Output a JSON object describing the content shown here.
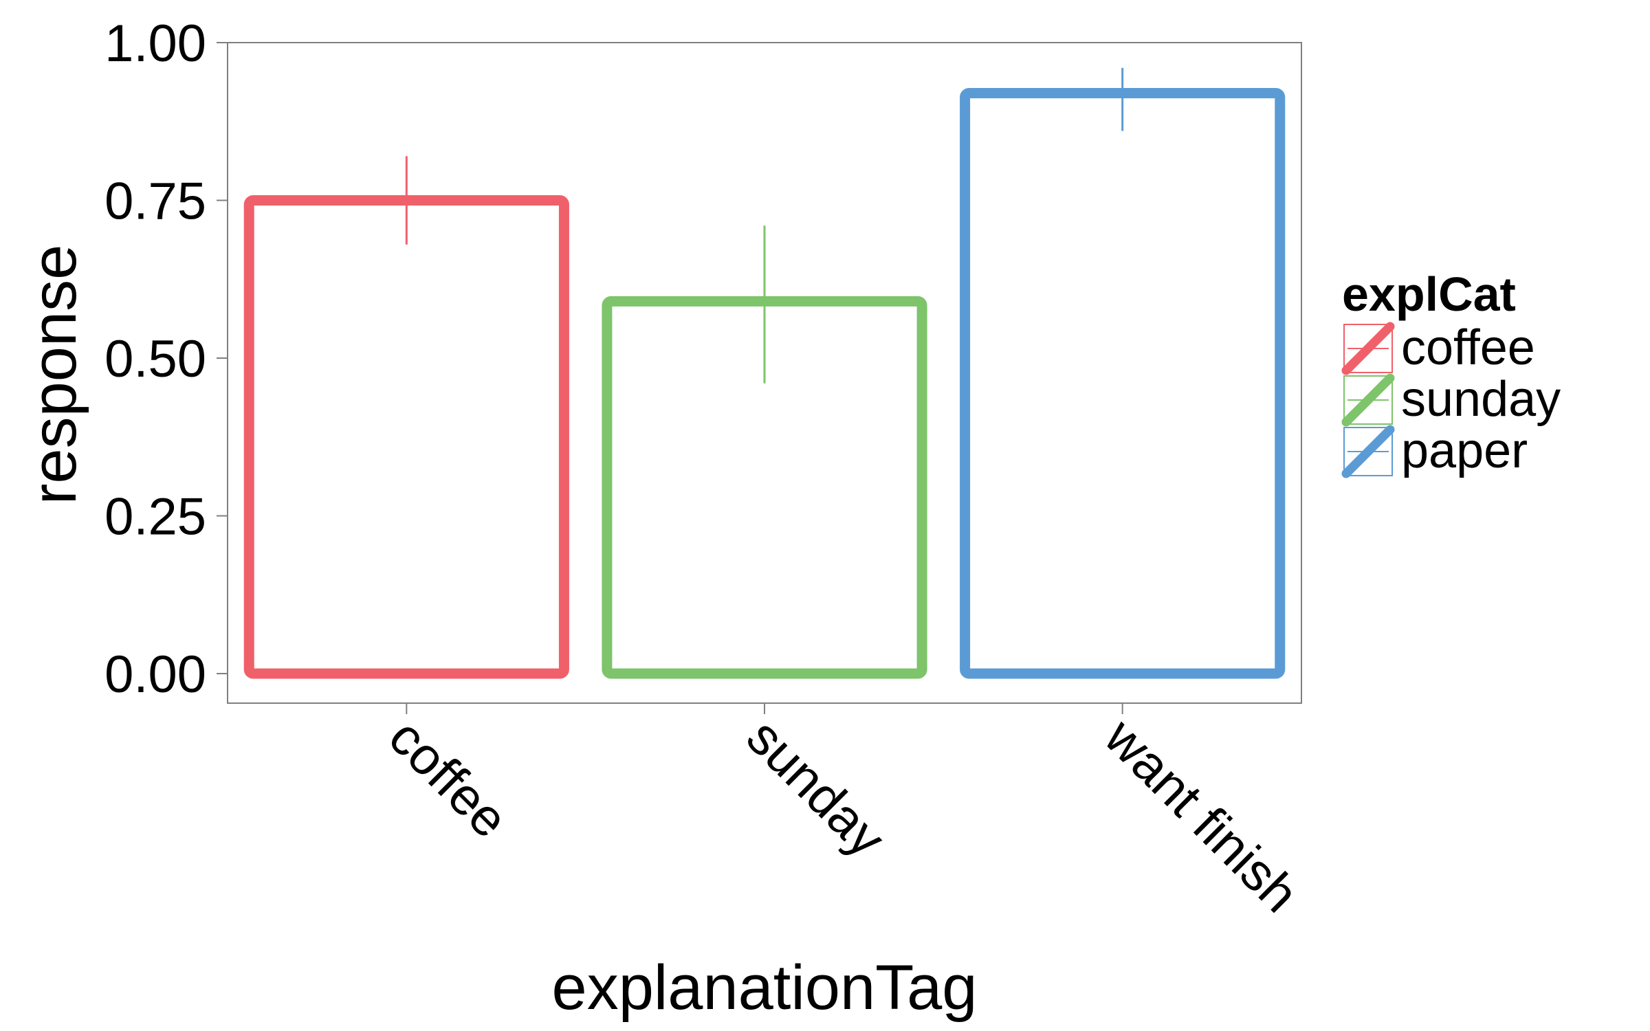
{
  "chart_data": {
    "type": "bar",
    "xlabel": "explanationTag",
    "ylabel": "response",
    "ylim": [
      0,
      1
    ],
    "categories": [
      "coffee",
      "sunday",
      "want finish"
    ],
    "values": [
      0.75,
      0.59,
      0.92
    ],
    "error_low": [
      0.68,
      0.46,
      0.86
    ],
    "error_high": [
      0.82,
      0.71,
      0.96
    ],
    "bar_colors": [
      "#F0606A",
      "#7DC46A",
      "#5B9BD5"
    ],
    "y_ticks": [
      0,
      0.25,
      0.5,
      0.75,
      1
    ],
    "y_tick_labels": [
      "0.00",
      "0.25",
      "0.50",
      "0.75",
      "1.00"
    ],
    "grid": false,
    "legend": {
      "title": "explCat",
      "position": "right",
      "entries": [
        {
          "label": "coffee",
          "color": "#F0606A"
        },
        {
          "label": "sunday",
          "color": "#7DC46A"
        },
        {
          "label": "paper",
          "color": "#5B9BD5"
        }
      ]
    }
  }
}
